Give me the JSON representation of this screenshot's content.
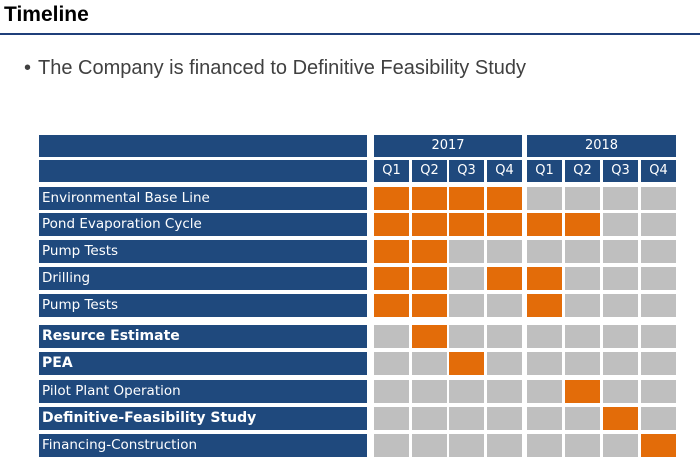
{
  "header": {
    "title": "Timeline"
  },
  "bullet": {
    "text": "The Company is financed to Definitive Feasibility Study"
  },
  "gantt": {
    "years": [
      "2017",
      "2018"
    ],
    "quarters": [
      "Q1",
      "Q2",
      "Q3",
      "Q4",
      "Q1",
      "Q2",
      "Q3",
      "Q4"
    ],
    "colors": {
      "label_bg": "#1f497d",
      "active": "#e36c09",
      "inactive": "#bfbfbf"
    },
    "rows": [
      {
        "label": "Environmental Base Line",
        "bold": false,
        "cells": [
          1,
          1,
          1,
          1,
          0,
          0,
          0,
          0
        ]
      },
      {
        "label": "Pond Evaporation Cycle",
        "bold": false,
        "cells": [
          1,
          1,
          1,
          1,
          1,
          1,
          0,
          0
        ]
      },
      {
        "label": "Pump Tests",
        "bold": false,
        "cells": [
          1,
          1,
          0,
          0,
          0,
          0,
          0,
          0
        ]
      },
      {
        "label": "Drilling",
        "bold": false,
        "cells": [
          1,
          1,
          0,
          1,
          1,
          0,
          0,
          0
        ]
      },
      {
        "label": "Pump Tests",
        "bold": false,
        "cells": [
          1,
          1,
          0,
          0,
          1,
          0,
          0,
          0
        ]
      },
      {
        "label": "Resurce Estimate",
        "bold": true,
        "cells": [
          0,
          1,
          0,
          0,
          0,
          0,
          0,
          0
        ]
      },
      {
        "label": "PEA",
        "bold": true,
        "cells": [
          0,
          0,
          1,
          0,
          0,
          0,
          0,
          0
        ]
      },
      {
        "label": "Pilot Plant Operation",
        "bold": false,
        "cells": [
          0,
          0,
          0,
          0,
          0,
          1,
          0,
          0
        ]
      },
      {
        "label": "Definitive-Feasibility Study",
        "bold": true,
        "cells": [
          0,
          0,
          0,
          0,
          0,
          0,
          1,
          0
        ]
      },
      {
        "label": "Financing-Construction",
        "bold": false,
        "cells": [
          0,
          0,
          0,
          0,
          0,
          0,
          0,
          1
        ]
      }
    ]
  }
}
